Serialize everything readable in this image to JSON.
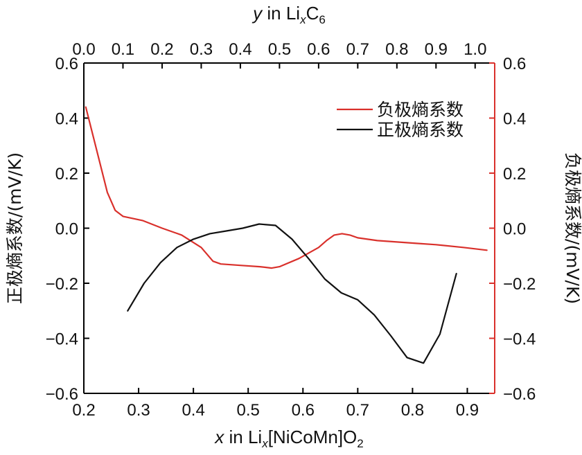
{
  "chart_data": {
    "type": "line",
    "top_xlabel": {
      "var": "y",
      "rest": " in Li",
      "sub": "x",
      "tail": "C",
      "tail_sub": "6"
    },
    "bottom_xlabel": {
      "var": "x",
      "rest": " in Li",
      "sub": "x",
      "tail": "[NiCoMn]O",
      "tail_sub": "2"
    },
    "left_ylabel": "正极熵系数/(mV/K)",
    "right_ylabel": "负极熵系数/(mV/K)",
    "bottom_x_range": [
      0.2,
      0.95
    ],
    "bottom_x_ticks": [
      "0.2",
      "0.3",
      "0.4",
      "0.5",
      "0.6",
      "0.7",
      "0.8",
      "0.9"
    ],
    "top_x_range": [
      0.0,
      1.05
    ],
    "top_x_ticks": [
      "0.0",
      "0.1",
      "0.2",
      "0.3",
      "0.4",
      "0.5",
      "0.6",
      "0.7",
      "0.8",
      "0.9",
      "1.0"
    ],
    "y_range": [
      -0.6,
      0.6
    ],
    "y_ticks": [
      "0.6",
      "0.4",
      "0.2",
      "0.0",
      "−0.2",
      "−0.4",
      "−0.6"
    ],
    "grid": false,
    "legend_position": "top-right",
    "colors": {
      "left_axis": "#000000",
      "right_axis": "#d9302b"
    },
    "series": [
      {
        "name": "负极熵系数",
        "axis": "top-right",
        "color": "#d9302b",
        "x": [
          0.005,
          0.03,
          0.06,
          0.08,
          0.1,
          0.15,
          0.2,
          0.25,
          0.3,
          0.33,
          0.35,
          0.4,
          0.45,
          0.48,
          0.5,
          0.55,
          0.6,
          0.62,
          0.64,
          0.66,
          0.68,
          0.7,
          0.75,
          0.8,
          0.85,
          0.9,
          0.97,
          1.03
        ],
        "y": [
          0.44,
          0.3,
          0.13,
          0.065,
          0.043,
          0.028,
          0.0,
          -0.025,
          -0.07,
          -0.12,
          -0.13,
          -0.135,
          -0.14,
          -0.145,
          -0.14,
          -0.11,
          -0.07,
          -0.045,
          -0.025,
          -0.02,
          -0.025,
          -0.035,
          -0.045,
          -0.05,
          -0.055,
          -0.06,
          -0.07,
          -0.08
        ]
      },
      {
        "name": "正极熵系数",
        "axis": "bottom-left",
        "color": "#111111",
        "x": [
          0.28,
          0.31,
          0.34,
          0.37,
          0.4,
          0.43,
          0.46,
          0.49,
          0.52,
          0.55,
          0.58,
          0.61,
          0.64,
          0.67,
          0.7,
          0.73,
          0.76,
          0.79,
          0.82,
          0.85,
          0.88
        ],
        "y": [
          -0.3,
          -0.2,
          -0.125,
          -0.07,
          -0.04,
          -0.02,
          -0.01,
          0.0,
          0.015,
          0.01,
          -0.04,
          -0.11,
          -0.185,
          -0.235,
          -0.26,
          -0.315,
          -0.39,
          -0.47,
          -0.49,
          -0.385,
          -0.165
        ]
      }
    ]
  }
}
